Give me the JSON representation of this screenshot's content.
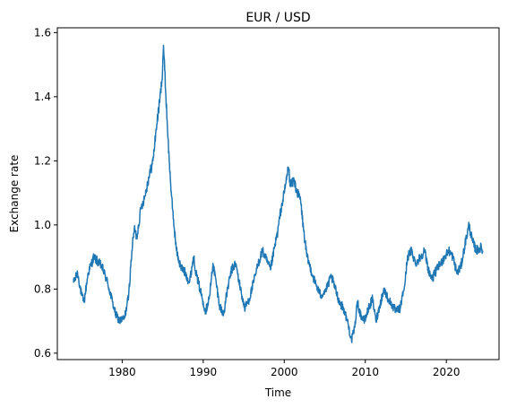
{
  "chart_data": {
    "type": "line",
    "title": "EUR / USD",
    "xlabel": "Time",
    "ylabel": "Exchange rate",
    "xlim": [
      1972.0,
      2026.5
    ],
    "ylim": [
      0.58,
      1.615
    ],
    "x_ticks": [
      1980,
      1990,
      2000,
      2010,
      2020
    ],
    "x_tick_labels": [
      "1980",
      "1990",
      "2000",
      "2010",
      "2020"
    ],
    "y_ticks": [
      0.6,
      0.8,
      1.0,
      1.2,
      1.4,
      1.6
    ],
    "y_tick_labels": [
      "0.6",
      "0.8",
      "1.0",
      "1.2",
      "1.4",
      "1.6"
    ],
    "grid": false,
    "series": [
      {
        "color": "#1f77b4",
        "x": [
          1974.0,
          1974.5,
          1975.0,
          1975.3,
          1975.8,
          1976.5,
          1977.5,
          1978.2,
          1978.8,
          1979.2,
          1979.7,
          1980.3,
          1980.8,
          1981.2,
          1981.5,
          1981.8,
          1982.3,
          1982.8,
          1983.3,
          1983.8,
          1984.2,
          1984.6,
          1984.9,
          1985.1,
          1985.4,
          1985.8,
          1986.2,
          1986.7,
          1987.2,
          1987.8,
          1988.3,
          1988.8,
          1989.2,
          1989.6,
          1990.0,
          1990.3,
          1990.8,
          1991.2,
          1991.6,
          1992.0,
          1992.5,
          1993.0,
          1993.5,
          1994.0,
          1994.6,
          1995.1,
          1995.7,
          1996.2,
          1996.8,
          1997.3,
          1997.8,
          1998.3,
          1998.8,
          1999.2,
          1999.6,
          2000.0,
          2000.5,
          2000.8,
          2001.2,
          2001.6,
          2002.0,
          2002.4,
          2002.8,
          2003.3,
          2003.8,
          2004.5,
          2005.2,
          2005.8,
          2006.3,
          2006.8,
          2007.3,
          2007.8,
          2008.3,
          2008.7,
          2009.0,
          2009.4,
          2009.9,
          2010.4,
          2010.9,
          2011.3,
          2011.8,
          2012.3,
          2012.8,
          2013.3,
          2013.8,
          2014.3,
          2014.9,
          2015.2,
          2015.7,
          2016.2,
          2016.8,
          2017.3,
          2017.8,
          2018.2,
          2018.8,
          2019.3,
          2019.8,
          2020.3,
          2020.8,
          2021.3,
          2021.8,
          2022.3,
          2022.8,
          2023.2,
          2023.7,
          2024.2,
          2024.5
        ],
        "y": [
          0.82,
          0.85,
          0.78,
          0.76,
          0.85,
          0.9,
          0.87,
          0.82,
          0.76,
          0.72,
          0.7,
          0.71,
          0.78,
          0.92,
          0.99,
          0.96,
          1.05,
          1.09,
          1.15,
          1.2,
          1.3,
          1.38,
          1.45,
          1.56,
          1.4,
          1.2,
          1.05,
          0.92,
          0.87,
          0.85,
          0.82,
          0.9,
          0.84,
          0.8,
          0.76,
          0.73,
          0.78,
          0.88,
          0.82,
          0.75,
          0.72,
          0.8,
          0.86,
          0.88,
          0.8,
          0.74,
          0.77,
          0.82,
          0.88,
          0.92,
          0.89,
          0.86,
          0.93,
          0.98,
          1.05,
          1.1,
          1.18,
          1.12,
          1.14,
          1.1,
          1.08,
          0.98,
          0.9,
          0.86,
          0.82,
          0.78,
          0.8,
          0.84,
          0.8,
          0.76,
          0.74,
          0.7,
          0.64,
          0.68,
          0.76,
          0.72,
          0.7,
          0.74,
          0.77,
          0.7,
          0.75,
          0.8,
          0.77,
          0.75,
          0.73,
          0.74,
          0.82,
          0.9,
          0.92,
          0.88,
          0.9,
          0.92,
          0.86,
          0.83,
          0.86,
          0.88,
          0.9,
          0.92,
          0.9,
          0.85,
          0.87,
          0.94,
          1.0,
          0.95,
          0.92,
          0.93,
          0.92
        ]
      }
    ]
  }
}
